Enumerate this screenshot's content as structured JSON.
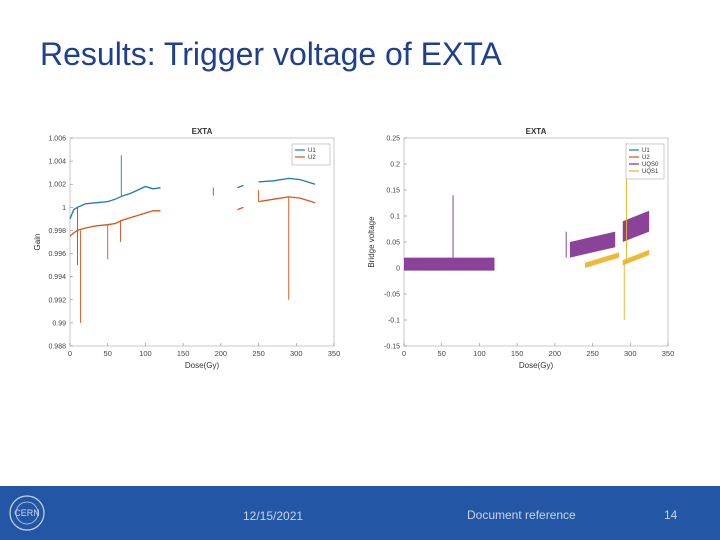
{
  "slide": {
    "title": "Results: Trigger voltage of EXTA"
  },
  "footer": {
    "date": "12/15/2021",
    "reference": "Document reference",
    "page_number": "14",
    "logo_text": "CERN"
  },
  "colors": {
    "title": "#1f3f8f",
    "footer_bg": "#2356a5",
    "series_blue": "#1f77b4",
    "series_orange": "#d95319",
    "series_purple": "#7e2f8e",
    "series_yellow": "#edb120"
  },
  "chart_data": [
    {
      "type": "line",
      "title": "EXTA",
      "xlabel": "Dose(Gy)",
      "ylabel": "Gain",
      "xlim": [
        0,
        350
      ],
      "ylim": [
        0.988,
        1.006
      ],
      "xticks": [
        "0",
        "50",
        "100",
        "150",
        "200",
        "250",
        "300",
        "350"
      ],
      "yticks": [
        "0.988",
        "0.99",
        "0.992",
        "0.994",
        "0.996",
        "0.998",
        "1",
        "1.002",
        "1.004",
        "1.006"
      ],
      "legend_position": "top-right",
      "grid": false,
      "series": [
        {
          "name": "U1",
          "color": "#1f77b4",
          "segments": [
            [
              [
                0,
                0.999
              ],
              [
                5,
                0.9998
              ],
              [
                10,
                1.0
              ],
              [
                20,
                1.0003
              ],
              [
                35,
                1.0004
              ],
              [
                50,
                1.0005
              ],
              [
                60,
                1.0007
              ],
              [
                70,
                1.001
              ],
              [
                80,
                1.0012
              ],
              [
                90,
                1.0015
              ],
              [
                100,
                1.0018
              ],
              [
                110,
                1.0016
              ],
              [
                120,
                1.0017
              ]
            ],
            [
              [
                222,
                1.0017
              ],
              [
                230,
                1.0019
              ]
            ],
            [
              [
                250,
                1.0022
              ],
              [
                270,
                1.0023
              ],
              [
                290,
                1.0025
              ],
              [
                305,
                1.0024
              ],
              [
                325,
                1.002
              ]
            ]
          ],
          "spikes": [
            [
              68,
              1.0045
            ],
            [
              10,
              0.995
            ],
            [
              190,
              1.001
            ]
          ]
        },
        {
          "name": "U2",
          "color": "#d95319",
          "segments": [
            [
              [
                0,
                0.9975
              ],
              [
                5,
                0.9978
              ],
              [
                10,
                0.998
              ],
              [
                20,
                0.9982
              ],
              [
                35,
                0.9984
              ],
              [
                50,
                0.9985
              ],
              [
                60,
                0.9986
              ],
              [
                70,
                0.9989
              ],
              [
                80,
                0.9991
              ],
              [
                90,
                0.9993
              ],
              [
                100,
                0.9995
              ],
              [
                110,
                0.9997
              ],
              [
                120,
                0.9997
              ]
            ],
            [
              [
                222,
                0.9998
              ],
              [
                230,
                1.0
              ]
            ],
            [
              [
                250,
                1.0005
              ],
              [
                270,
                1.0007
              ],
              [
                290,
                1.0009
              ],
              [
                305,
                1.0008
              ],
              [
                325,
                1.0004
              ]
            ]
          ],
          "spikes": [
            [
              14,
              0.99
            ],
            [
              50,
              0.9955
            ],
            [
              67,
              0.997
            ],
            [
              250,
              1.0015
            ],
            [
              290,
              0.992
            ]
          ]
        }
      ]
    },
    {
      "type": "line",
      "title": "EXTA",
      "xlabel": "Dose(Gy)",
      "ylabel": "Bridge voltage",
      "xlim": [
        0,
        350
      ],
      "ylim": [
        -0.15,
        0.25
      ],
      "xticks": [
        "0",
        "50",
        "100",
        "150",
        "200",
        "250",
        "300",
        "350"
      ],
      "yticks": [
        "-0.15",
        "-0.1",
        "-0.05",
        "0",
        "0.05",
        "0.1",
        "0.15",
        "0.2",
        "0.25"
      ],
      "legend_position": "top-right",
      "grid": false,
      "series": [
        {
          "name": "U1",
          "color": "#1f77b4"
        },
        {
          "name": "U2",
          "color": "#d95319"
        },
        {
          "name": "UQS0",
          "color": "#7e2f8e",
          "bands": [
            {
              "x": [
                0,
                120
              ],
              "low": -0.005,
              "high": 0.02
            },
            {
              "x": [
                220,
                280
              ],
              "low": 0.02,
              "high": 0.05
            },
            {
              "x": [
                290,
                325
              ],
              "low": 0.05,
              "high": 0.09
            }
          ],
          "spikes": [
            [
              65,
              0.14
            ],
            [
              215,
              0.07
            ]
          ]
        },
        {
          "name": "UQS1",
          "color": "#edb120",
          "bands": [
            {
              "x": [
                240,
                285
              ],
              "low": 0.0,
              "high": 0.01
            },
            {
              "x": [
                290,
                325
              ],
              "low": 0.005,
              "high": 0.015
            }
          ],
          "spikes": [
            [
              295,
              0.24
            ],
            [
              292,
              -0.1
            ]
          ]
        }
      ]
    }
  ]
}
